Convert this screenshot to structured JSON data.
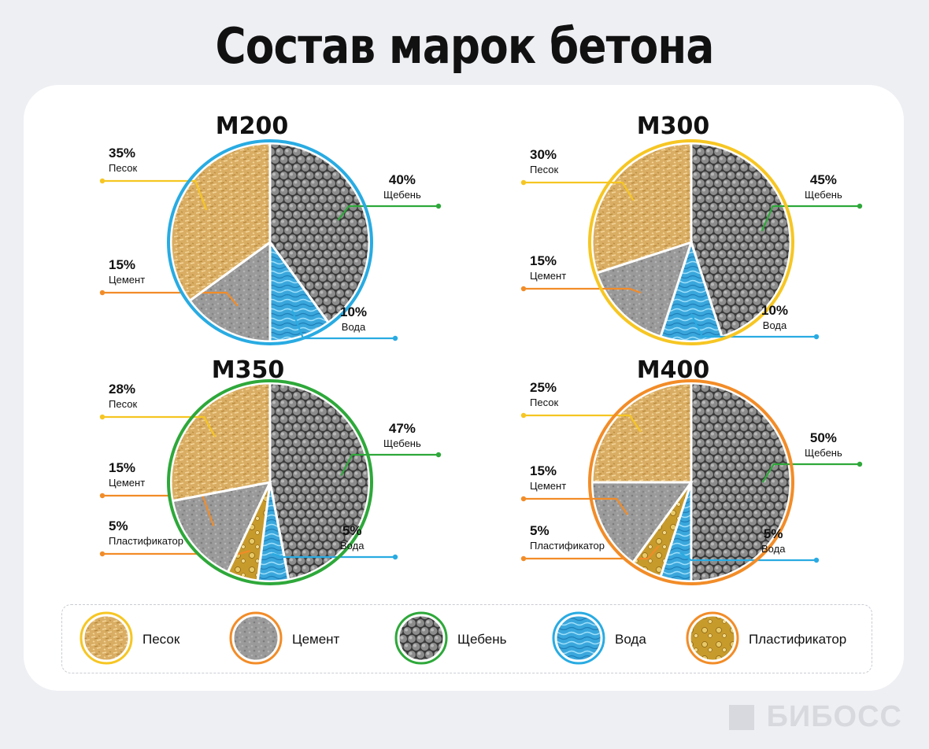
{
  "title": "Состав марок бетона",
  "colors": {
    "sand": "#d9ad63",
    "cement": "#9a9a9a",
    "gravel": "#6f6f6f",
    "water": "#3aa7dc",
    "plasticizer": "#c79a2c",
    "ring_m200": "#29abe2",
    "ring_m300": "#f6c623",
    "ring_m350": "#2ea83a",
    "ring_m400": "#f28c28",
    "line_sand": "#f6c623",
    "line_cement": "#f28c28",
    "line_gravel": "#2ea83a",
    "line_water": "#29abe2",
    "line_plast": "#f28c28"
  },
  "chart_data": [
    {
      "type": "pie",
      "title": "М200",
      "ring": "ring_m200",
      "slices": [
        {
          "label": "Щебень",
          "value": 40,
          "text": "40%"
        },
        {
          "label": "Вода",
          "value": 10,
          "text": "10%"
        },
        {
          "label": "Цемент",
          "value": 15,
          "text": "15%"
        },
        {
          "label": "Песок",
          "value": 35,
          "text": "35%"
        }
      ]
    },
    {
      "type": "pie",
      "title": "М300",
      "ring": "ring_m300",
      "slices": [
        {
          "label": "Щебень",
          "value": 45,
          "text": "45%"
        },
        {
          "label": "Вода",
          "value": 10,
          "text": "10%"
        },
        {
          "label": "Цемент",
          "value": 15,
          "text": "15%"
        },
        {
          "label": "Песок",
          "value": 30,
          "text": "30%"
        }
      ]
    },
    {
      "type": "pie",
      "title": "М350",
      "ring": "ring_m350",
      "slices": [
        {
          "label": "Щебень",
          "value": 47,
          "text": "47%"
        },
        {
          "label": "Вода",
          "value": 5,
          "text": "5%"
        },
        {
          "label": "Пластификатор",
          "value": 5,
          "text": "5%"
        },
        {
          "label": "Цемент",
          "value": 15,
          "text": "15%"
        },
        {
          "label": "Песок",
          "value": 28,
          "text": "28%"
        }
      ]
    },
    {
      "type": "pie",
      "title": "М400",
      "ring": "ring_m400",
      "slices": [
        {
          "label": "Щебень",
          "value": 50,
          "text": "50%"
        },
        {
          "label": "Вода",
          "value": 5,
          "text": "5%"
        },
        {
          "label": "Пластификатор",
          "value": 5,
          "text": "5%"
        },
        {
          "label": "Цемент",
          "value": 15,
          "text": "15%"
        },
        {
          "label": "Песок",
          "value": 25,
          "text": "25%"
        }
      ]
    }
  ],
  "legend": [
    {
      "label": "Песок",
      "fill": "sand",
      "ring": "#f6c623",
      "icon": "sand-icon"
    },
    {
      "label": "Цемент",
      "fill": "cement",
      "ring": "#f28c28",
      "icon": "cement-icon"
    },
    {
      "label": "Щебень",
      "fill": "gravel",
      "ring": "#2ea83a",
      "icon": "gravel-icon"
    },
    {
      "label": "Вода",
      "fill": "water",
      "ring": "#29abe2",
      "icon": "water-icon"
    },
    {
      "label": "Пластификатор",
      "fill": "plasticizer",
      "ring": "#f28c28",
      "icon": "plasticizer-icon"
    }
  ],
  "watermark": "БИБОСС"
}
